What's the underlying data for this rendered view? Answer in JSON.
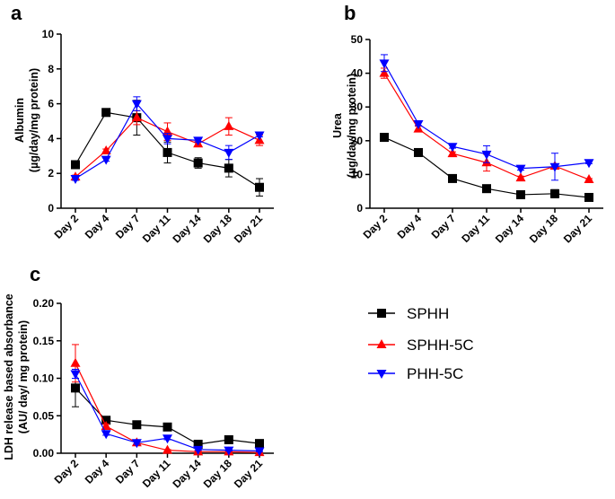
{
  "legend": [
    {
      "name": "SPHH",
      "color": "#000000",
      "marker": "square"
    },
    {
      "name": "SPHH-5C",
      "color": "#ff0000",
      "marker": "triangle-up"
    },
    {
      "name": "PHH-5C",
      "color": "#0000ff",
      "marker": "triangle-down"
    }
  ],
  "chart_data": [
    {
      "panel": "a",
      "type": "line",
      "title": "",
      "xlabel": "",
      "ylabel": [
        "Albumin",
        "(µg/day/mg protein)"
      ],
      "categories": [
        "Day 2",
        "Day 4",
        "Day 7",
        "Day 11",
        "Day 14",
        "Day 18",
        "Day 21"
      ],
      "ylim": [
        0,
        10
      ],
      "yticks": [
        0,
        2,
        4,
        6,
        8,
        10
      ],
      "yticklabels": [
        "0",
        "2",
        "4",
        "6",
        "8",
        "10"
      ],
      "series": [
        {
          "name": "SPHH",
          "values": [
            2.5,
            5.5,
            5.2,
            3.2,
            2.6,
            2.3,
            1.2
          ],
          "errors": [
            0.1,
            0.2,
            1.0,
            0.6,
            0.3,
            0.5,
            0.5
          ]
        },
        {
          "name": "SPHH-5C",
          "values": [
            1.8,
            3.3,
            5.2,
            4.4,
            3.7,
            4.7,
            3.9
          ],
          "errors": [
            0.1,
            0.1,
            0.4,
            0.5,
            0.15,
            0.5,
            0.3
          ]
        },
        {
          "name": "PHH-5C",
          "values": [
            1.7,
            2.8,
            6.0,
            4.0,
            3.9,
            3.2,
            4.2
          ],
          "errors": [
            0.1,
            0.1,
            0.4,
            0.3,
            0.1,
            0.4,
            0.1
          ]
        }
      ]
    },
    {
      "panel": "b",
      "type": "line",
      "title": "",
      "xlabel": "",
      "ylabel": [
        "Urea",
        "(µg/day/mg protein)"
      ],
      "categories": [
        "Day 2",
        "Day 4",
        "Day 7",
        "Day 11",
        "Day 14",
        "Day 18",
        "Day 21"
      ],
      "ylim": [
        0,
        50
      ],
      "yticks": [
        0,
        10,
        20,
        30,
        40,
        50
      ],
      "yticklabels": [
        "0",
        "10",
        "20",
        "30",
        "40",
        "50"
      ],
      "series": [
        {
          "name": "SPHH",
          "values": [
            21,
            16.5,
            8.8,
            5.8,
            4.0,
            4.3,
            3.2
          ],
          "errors": [
            1.2,
            1.0,
            0.4,
            0.5,
            0.5,
            1.2,
            0.3
          ]
        },
        {
          "name": "SPHH-5C",
          "values": [
            40,
            23.5,
            16.2,
            13.5,
            9.0,
            12.5,
            8.5
          ],
          "errors": [
            1.5,
            0.8,
            0.5,
            2.5,
            0.5,
            0.5,
            0.3
          ]
        },
        {
          "name": "PHH-5C",
          "values": [
            43,
            25,
            18.3,
            16.0,
            11.8,
            12.3,
            13.5
          ],
          "errors": [
            2.5,
            0.5,
            0.5,
            2.5,
            0.5,
            4.0,
            0.3
          ]
        }
      ]
    },
    {
      "panel": "c",
      "type": "line",
      "title": "",
      "xlabel": "",
      "ylabel": [
        "LDH release based absorbance",
        "(AU/ day/ mg protein)"
      ],
      "categories": [
        "Day 2",
        "Day 4",
        "Day 7",
        "Day 11",
        "Day 14",
        "Day 18",
        "Day 21"
      ],
      "ylim": [
        0,
        0.2
      ],
      "yticks": [
        0,
        0.05,
        0.1,
        0.15,
        0.2
      ],
      "yticklabels": [
        "0.00",
        "0.05",
        "0.10",
        "0.15",
        "0.20"
      ],
      "series": [
        {
          "name": "SPHH",
          "values": [
            0.087,
            0.044,
            0.038,
            0.035,
            0.012,
            0.018,
            0.013
          ],
          "errors": [
            0.025,
            0.003,
            0.005,
            0.003,
            0.003,
            0.002,
            0.002
          ]
        },
        {
          "name": "SPHH-5C",
          "values": [
            0.12,
            0.036,
            0.014,
            0.004,
            0.002,
            0.002,
            0.001
          ],
          "errors": [
            0.025,
            0.003,
            0.002,
            0.001,
            0.001,
            0.001,
            0.001
          ]
        },
        {
          "name": "PHH-5C",
          "values": [
            0.106,
            0.026,
            0.014,
            0.02,
            0.005,
            0.004,
            0.003
          ],
          "errors": [
            0.006,
            0.002,
            0.002,
            0.002,
            0.001,
            0.001,
            0.001
          ]
        }
      ]
    }
  ]
}
